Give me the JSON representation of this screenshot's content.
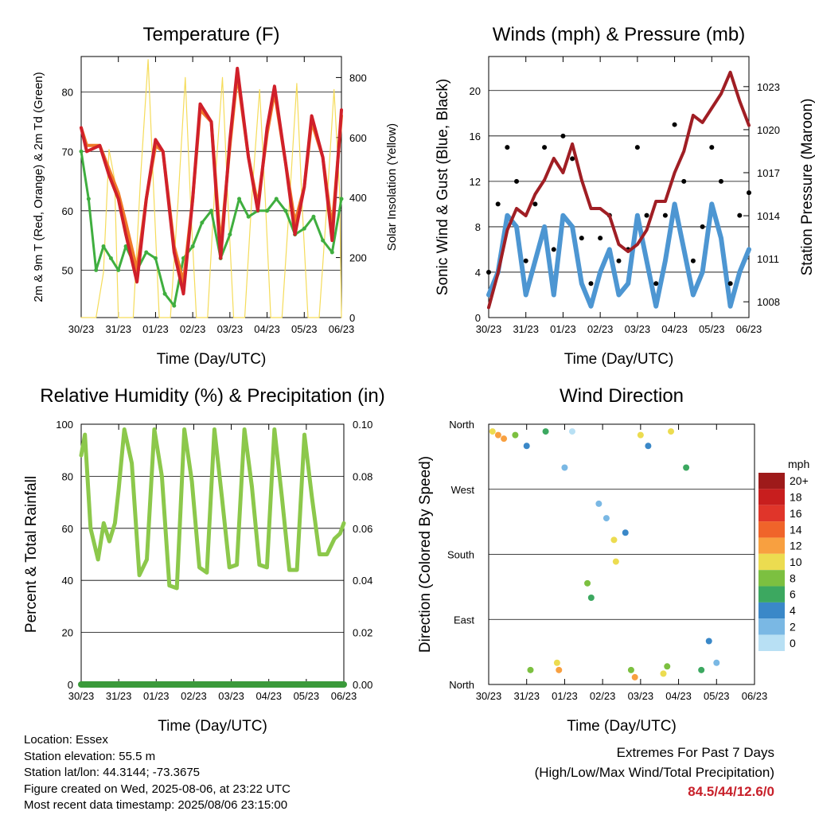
{
  "x_ticks": [
    "30/23",
    "31/23",
    "01/23",
    "02/23",
    "03/23",
    "04/23",
    "05/23",
    "06/23"
  ],
  "x_axis_title": "Time (Day/UTC)",
  "colors": {
    "temp_2m": "#d0202a",
    "temp_9m": "#f07a28",
    "dewpoint": "#3fae3f",
    "insolation": "#f5dc5a",
    "wind": "#4d96d2",
    "gust": "#000000",
    "pressure": "#a01e24",
    "rh": "#8cc84b",
    "precip": "#3a9a3a",
    "extremes_text": "#c8202a"
  },
  "chart_data": [
    {
      "id": "temperature",
      "type": "line",
      "title": "Temperature (F)",
      "ylabel_left": "2m & 9m T (Red, Orange) & 2m Td (Green)",
      "ylabel_right": "Solar Insolation (Yellow)",
      "xlabel": "Time (Day/UTC)",
      "ylim": [
        42,
        86
      ],
      "yticks": [
        50,
        60,
        70,
        80
      ],
      "y2lim": [
        0,
        870
      ],
      "y2ticks": [
        0,
        200,
        400,
        600,
        800
      ],
      "grid": true,
      "series": [
        {
          "name": "2m T",
          "color": "#d0202a",
          "x": [
            0,
            0.15,
            0.5,
            0.75,
            1.0,
            1.2,
            1.5,
            1.75,
            2.0,
            2.2,
            2.5,
            2.75,
            3.0,
            3.2,
            3.5,
            3.75,
            4.0,
            4.2,
            4.5,
            4.75,
            5.0,
            5.2,
            5.5,
            5.75,
            6.0,
            6.2,
            6.5,
            6.75,
            7.0
          ],
          "y": [
            74,
            70,
            71,
            66,
            62,
            56,
            48,
            62,
            72,
            70,
            53,
            46,
            62,
            78,
            75,
            52,
            72,
            84,
            69,
            60,
            74,
            81,
            68,
            56,
            64,
            76,
            69,
            55,
            77
          ]
        },
        {
          "name": "9m T",
          "color": "#f07a28",
          "x": [
            0,
            0.15,
            0.5,
            0.75,
            1.0,
            1.2,
            1.5,
            1.75,
            2.0,
            2.2,
            2.5,
            2.75,
            3.0,
            3.2,
            3.5,
            3.75,
            4.0,
            4.2,
            4.5,
            4.75,
            5.0,
            5.2,
            5.5,
            5.75,
            6.0,
            6.2,
            6.5,
            6.75,
            7.0
          ],
          "y": [
            74,
            71,
            71,
            67,
            63,
            58,
            50,
            62,
            71,
            70,
            54,
            48,
            62,
            77,
            75,
            54,
            71,
            83,
            69,
            61,
            73,
            80,
            68,
            58,
            64,
            75,
            69,
            57,
            76
          ]
        },
        {
          "name": "2m Td",
          "color": "#3fae3f",
          "x": [
            0,
            0.2,
            0.4,
            0.6,
            0.8,
            1.0,
            1.2,
            1.5,
            1.75,
            2.0,
            2.25,
            2.5,
            2.75,
            3.0,
            3.25,
            3.5,
            3.75,
            4.0,
            4.25,
            4.5,
            4.75,
            5.0,
            5.25,
            5.5,
            5.75,
            6.0,
            6.25,
            6.5,
            6.75,
            7.0
          ],
          "y": [
            70,
            62,
            50,
            54,
            52,
            50,
            54,
            50,
            53,
            52,
            46,
            44,
            52,
            54,
            58,
            60,
            52,
            56,
            62,
            59,
            60,
            60,
            62,
            60,
            56,
            57,
            59,
            55,
            53,
            62
          ]
        },
        {
          "name": "Solar Insolation",
          "color": "#f5dc5a",
          "x": [
            0,
            0.2,
            0.4,
            0.6,
            0.75,
            0.9,
            1.0,
            1.4,
            1.6,
            1.8,
            1.95,
            2.1,
            2.4,
            2.6,
            2.8,
            2.95,
            3.1,
            3.4,
            3.6,
            3.8,
            3.95,
            4.1,
            4.4,
            4.6,
            4.8,
            4.95,
            5.1,
            5.4,
            5.6,
            5.8,
            5.95,
            6.1,
            6.4,
            6.6,
            6.8,
            6.95,
            7.0
          ],
          "y": [
            0,
            0,
            0,
            150,
            560,
            460,
            0,
            0,
            470,
            860,
            420,
            0,
            0,
            380,
            800,
            360,
            0,
            0,
            450,
            800,
            380,
            0,
            0,
            420,
            760,
            400,
            0,
            0,
            380,
            780,
            360,
            0,
            0,
            360,
            760,
            420,
            0
          ]
        }
      ]
    },
    {
      "id": "winds",
      "type": "scatter",
      "title": "Winds (mph) & Pressure (mb)",
      "ylabel_left": "Sonic Wind & Gust (Blue, Black)",
      "ylabel_right": "Station Pressure (Maroon)",
      "xlabel": "Time (Day/UTC)",
      "ylim": [
        0,
        23
      ],
      "yticks": [
        0,
        4,
        8,
        12,
        16,
        20
      ],
      "y2lim": [
        1006.9,
        1025.1
      ],
      "y2ticks": [
        1008,
        1011,
        1014,
        1017,
        1020,
        1023
      ],
      "grid": true,
      "series": [
        {
          "name": "Sonic Wind",
          "color": "#4d96d2",
          "x": [
            0,
            0.25,
            0.5,
            0.75,
            1.0,
            1.25,
            1.5,
            1.75,
            2.0,
            2.25,
            2.5,
            2.75,
            3.0,
            3.25,
            3.5,
            3.75,
            4.0,
            4.25,
            4.5,
            4.75,
            5.0,
            5.25,
            5.5,
            5.75,
            6.0,
            6.25,
            6.5,
            6.75,
            7.0
          ],
          "y": [
            2,
            4,
            9,
            8,
            2,
            5,
            8,
            2,
            9,
            8,
            3,
            1,
            4,
            6,
            2,
            3,
            9,
            5,
            1,
            5,
            10,
            6,
            2,
            4,
            10,
            7,
            1,
            4,
            6
          ]
        },
        {
          "name": "Gust",
          "color": "#000000",
          "x": [
            0,
            0.25,
            0.5,
            0.75,
            1.0,
            1.25,
            1.5,
            1.75,
            2.0,
            2.25,
            2.5,
            2.75,
            3.0,
            3.25,
            3.5,
            3.75,
            4.0,
            4.25,
            4.5,
            4.75,
            5.0,
            5.25,
            5.5,
            5.75,
            6.0,
            6.25,
            6.5,
            6.75,
            7.0
          ],
          "y": [
            4,
            10,
            15,
            12,
            5,
            10,
            15,
            6,
            16,
            14,
            7,
            3,
            7,
            9,
            5,
            6,
            15,
            9,
            3,
            9,
            17,
            12,
            5,
            8,
            15,
            12,
            3,
            9,
            11
          ]
        },
        {
          "name": "Station Pressure",
          "color": "#a01e24",
          "x": [
            0,
            0.25,
            0.5,
            0.75,
            1.0,
            1.25,
            1.5,
            1.75,
            2.0,
            2.25,
            2.5,
            2.75,
            3.0,
            3.25,
            3.5,
            3.75,
            4.0,
            4.25,
            4.5,
            4.75,
            5.0,
            5.25,
            5.5,
            5.75,
            6.0,
            6.25,
            6.5,
            6.75,
            7.0
          ],
          "y": [
            1007.6,
            1010,
            1013,
            1014.5,
            1014,
            1015.5,
            1016.5,
            1018,
            1017,
            1019,
            1016.5,
            1014.5,
            1014.5,
            1014,
            1012,
            1011.5,
            1012,
            1013,
            1015,
            1015,
            1017,
            1018.5,
            1021,
            1020.5,
            1021.5,
            1022.5,
            1024,
            1022,
            1020.3
          ]
        }
      ]
    },
    {
      "id": "humidity",
      "type": "line",
      "title": "Relative Humidity (%) & Precipitation (in)",
      "ylabel_left": "Percent & Total Rainfall",
      "xlabel": "Time (Day/UTC)",
      "ylim": [
        0,
        100
      ],
      "yticks": [
        0,
        20,
        40,
        60,
        80,
        100
      ],
      "y2lim": [
        0,
        0.1
      ],
      "y2ticks": [
        "0.00",
        "0.02",
        "0.04",
        "0.06",
        "0.08",
        "0.10"
      ],
      "grid": true,
      "series": [
        {
          "name": "Relative Humidity",
          "color": "#8cc84b",
          "x": [
            0,
            0.1,
            0.25,
            0.45,
            0.6,
            0.75,
            0.9,
            1.0,
            1.15,
            1.35,
            1.55,
            1.75,
            1.95,
            2.15,
            2.35,
            2.55,
            2.75,
            2.95,
            3.15,
            3.35,
            3.55,
            3.75,
            3.95,
            4.15,
            4.35,
            4.55,
            4.75,
            4.95,
            5.15,
            5.35,
            5.55,
            5.75,
            5.95,
            6.15,
            6.35,
            6.55,
            6.75,
            6.9,
            7.0
          ],
          "y": [
            88,
            96,
            60,
            48,
            62,
            55,
            62,
            75,
            98,
            85,
            42,
            48,
            98,
            80,
            38,
            37,
            98,
            78,
            45,
            43,
            98,
            72,
            45,
            46,
            98,
            76,
            46,
            45,
            98,
            72,
            44,
            44,
            96,
            72,
            50,
            50,
            56,
            58,
            62
          ]
        },
        {
          "name": "Total Precipitation",
          "color": "#3a9a3a",
          "x": [
            0,
            7
          ],
          "y": [
            0,
            0
          ]
        }
      ]
    },
    {
      "id": "direction",
      "type": "scatter",
      "title": "Wind Direction",
      "ylabel_left": "Direction (Colored By Speed)",
      "xlabel": "Time (Day/UTC)",
      "ylim": [
        0,
        360
      ],
      "yticks": [
        "North",
        "East",
        "South",
        "West",
        "North"
      ],
      "grid": true,
      "colorbar": {
        "unit": "mph",
        "labels": [
          "20+",
          "18",
          "16",
          "14",
          "12",
          "10",
          "8",
          "6",
          "4",
          "2",
          "0"
        ],
        "colors": [
          "#9e1a1a",
          "#c81e1e",
          "#e0352a",
          "#f0642a",
          "#f8a040",
          "#ecdc50",
          "#7cc040",
          "#3ca860",
          "#3a88c8",
          "#7ab8e4",
          "#b8e0f4"
        ]
      },
      "points": [
        {
          "x": 0.1,
          "y": 350,
          "s": 10
        },
        {
          "x": 0.25,
          "y": 345,
          "s": 12
        },
        {
          "x": 0.4,
          "y": 340,
          "s": 11
        },
        {
          "x": 0.7,
          "y": 345,
          "s": 8
        },
        {
          "x": 1.0,
          "y": 330,
          "s": 4
        },
        {
          "x": 1.1,
          "y": 20,
          "s": 8
        },
        {
          "x": 1.5,
          "y": 350,
          "s": 6
        },
        {
          "x": 1.8,
          "y": 30,
          "s": 10
        },
        {
          "x": 1.85,
          "y": 20,
          "s": 12
        },
        {
          "x": 2.0,
          "y": 300,
          "s": 2
        },
        {
          "x": 2.2,
          "y": 350,
          "s": 0
        },
        {
          "x": 2.6,
          "y": 140,
          "s": 7
        },
        {
          "x": 2.7,
          "y": 120,
          "s": 5
        },
        {
          "x": 2.9,
          "y": 250,
          "s": 2
        },
        {
          "x": 3.1,
          "y": 230,
          "s": 1
        },
        {
          "x": 3.3,
          "y": 200,
          "s": 10
        },
        {
          "x": 3.35,
          "y": 170,
          "s": 9
        },
        {
          "x": 3.6,
          "y": 210,
          "s": 3
        },
        {
          "x": 3.75,
          "y": 20,
          "s": 8
        },
        {
          "x": 3.85,
          "y": 10,
          "s": 11
        },
        {
          "x": 4.0,
          "y": 345,
          "s": 9
        },
        {
          "x": 4.2,
          "y": 330,
          "s": 4
        },
        {
          "x": 4.6,
          "y": 15,
          "s": 10
        },
        {
          "x": 4.7,
          "y": 25,
          "s": 7
        },
        {
          "x": 4.8,
          "y": 350,
          "s": 9
        },
        {
          "x": 5.2,
          "y": 300,
          "s": 5
        },
        {
          "x": 5.6,
          "y": 20,
          "s": 6
        },
        {
          "x": 5.8,
          "y": 60,
          "s": 3
        },
        {
          "x": 6.0,
          "y": 30,
          "s": 2
        }
      ]
    }
  ],
  "info": {
    "location": "Location: Essex",
    "elevation": "Station elevation: 55.5 m",
    "latlon": "Station lat/lon: 44.3144; -73.3675",
    "created": "Figure created on Wed, 2025-08-06, at 23:22 UTC",
    "recent": "Most recent data timestamp: 2025/08/06 23:15:00"
  },
  "extremes": {
    "title": "Extremes For Past 7 Days",
    "subtitle": "(High/Low/Max Wind/Total Precipitation)",
    "values": "84.5/44/12.6/0"
  }
}
